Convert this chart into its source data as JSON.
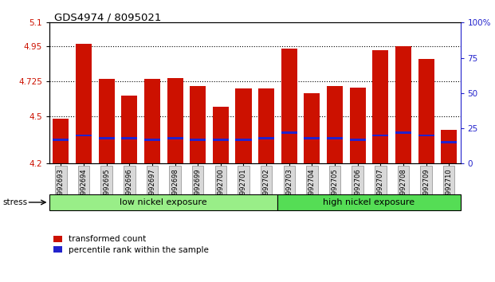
{
  "title": "GDS4974 / 8095021",
  "samples": [
    "GSM992693",
    "GSM992694",
    "GSM992695",
    "GSM992696",
    "GSM992697",
    "GSM992698",
    "GSM992699",
    "GSM992700",
    "GSM992701",
    "GSM992702",
    "GSM992703",
    "GSM992704",
    "GSM992705",
    "GSM992706",
    "GSM992707",
    "GSM992708",
    "GSM992709",
    "GSM992710"
  ],
  "transformed_counts": [
    4.485,
    4.965,
    4.74,
    4.635,
    4.74,
    4.745,
    4.695,
    4.565,
    4.68,
    4.68,
    4.935,
    4.65,
    4.695,
    4.685,
    4.925,
    4.95,
    4.87,
    4.415
  ],
  "percentile_ranks": [
    17,
    20,
    18,
    18,
    17,
    18,
    17,
    17,
    17,
    18,
    22,
    18,
    18,
    17,
    20,
    22,
    20,
    15
  ],
  "ymin": 4.2,
  "ymax": 5.1,
  "yticks": [
    4.2,
    4.5,
    4.725,
    4.95,
    5.1
  ],
  "ytick_labels": [
    "4.2",
    "4.5",
    "4.725",
    "4.95",
    "5.1"
  ],
  "right_yticks": [
    0,
    25,
    50,
    75,
    100
  ],
  "right_ytick_labels": [
    "0",
    "25",
    "50",
    "75",
    "100%"
  ],
  "bar_color": "#cc1100",
  "blue_color": "#2222cc",
  "group_labels": [
    "low nickel exposure",
    "high nickel exposure"
  ],
  "group_colors_low": "#99ee88",
  "group_colors_high": "#55dd55",
  "n_low": 10,
  "n_high": 8,
  "stress_label": "stress",
  "legend_items": [
    "transformed count",
    "percentile rank within the sample"
  ]
}
